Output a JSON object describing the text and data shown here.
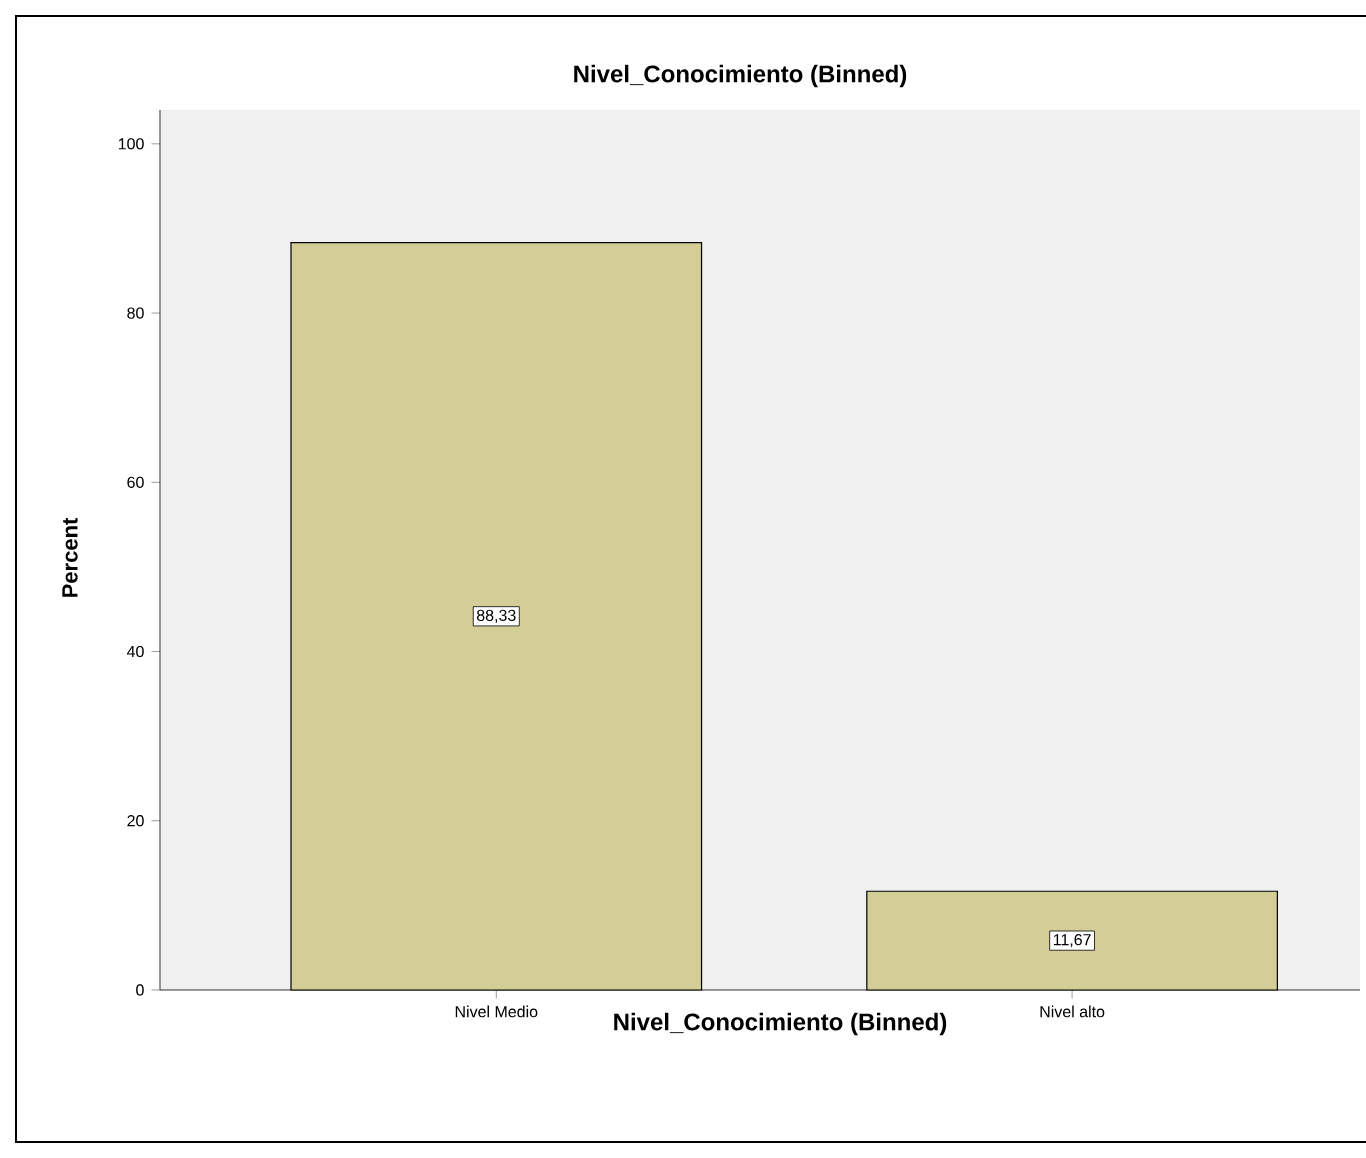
{
  "chart_data": {
    "type": "bar",
    "title": "Nivel_Conocimiento (Binned)",
    "xlabel": "Nivel_Conocimiento (Binned)",
    "ylabel": "Percent",
    "categories": [
      "Nivel Medio",
      "Nivel alto"
    ],
    "values": [
      88.33,
      11.67
    ],
    "value_labels": [
      "88,33",
      "11,67"
    ],
    "color": "#d3ce97",
    "ylim": [
      0,
      104
    ],
    "yticks": [
      0,
      20,
      40,
      60,
      80,
      100
    ]
  }
}
